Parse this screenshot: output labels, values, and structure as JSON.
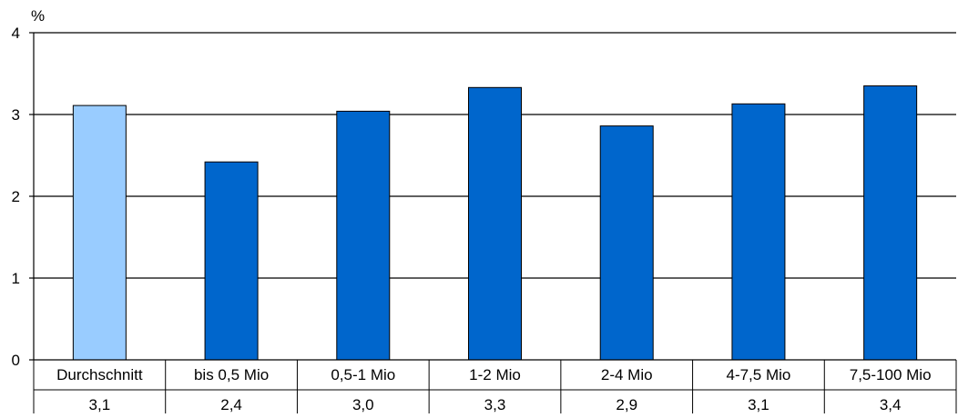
{
  "chart_data": {
    "type": "bar",
    "title": "",
    "xlabel": "",
    "ylabel": "%",
    "ylim": [
      0,
      4
    ],
    "yticks": [
      0,
      1,
      2,
      3,
      4
    ],
    "grid": true,
    "categories": [
      "Durchschnitt",
      "bis 0,5 Mio",
      "0,5-1 Mio",
      "1-2 Mio",
      "2-4 Mio",
      "4-7,5 Mio",
      "7,5-100 Mio"
    ],
    "values": [
      3.1,
      2.4,
      3.0,
      3.3,
      2.9,
      3.1,
      3.4
    ],
    "plotted_values": [
      3.11,
      2.42,
      3.04,
      3.33,
      2.86,
      3.13,
      3.35
    ],
    "data_table": [
      "3,1",
      "2,4",
      "3,0",
      "3,3",
      "2,9",
      "3,1",
      "3,4"
    ],
    "colors": {
      "highlight": "#99ccff",
      "bar": "#0066cc",
      "outline": "#000000"
    },
    "highlight_index": 0
  }
}
